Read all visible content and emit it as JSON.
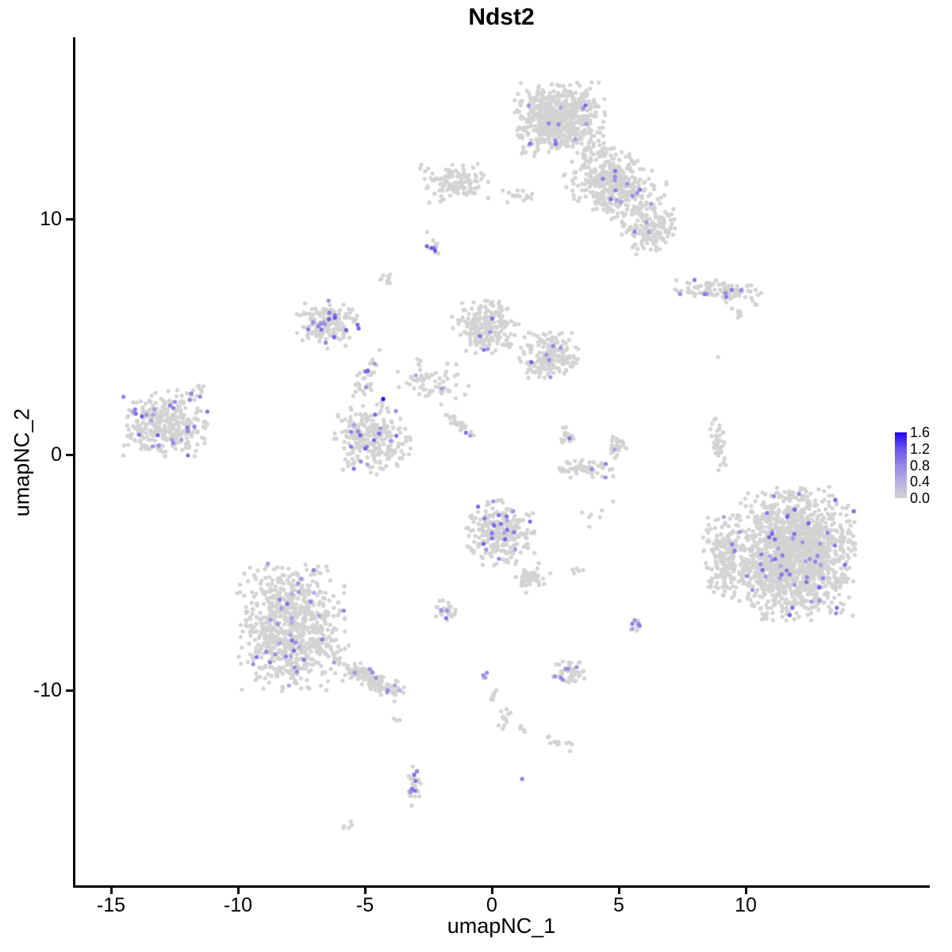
{
  "title": "Ndst2",
  "axes": {
    "x": {
      "label": "umapNC_1",
      "ticks": [
        -15,
        -10,
        -5,
        0,
        5,
        10
      ]
    },
    "y": {
      "label": "umapNC_2",
      "ticks": [
        10,
        0,
        -10
      ]
    }
  },
  "legend": {
    "labels": [
      "1.6",
      "1.2",
      "0.8",
      "0.4",
      "0.0"
    ],
    "values": [
      1.6,
      1.2,
      0.8,
      0.4,
      0.0
    ],
    "min": 0.0,
    "max": 1.6
  },
  "colors": {
    "background": "#ffffff",
    "axis": "#000000",
    "base_point": "#D3D3D3",
    "gradient_stops": [
      [
        0.0,
        "#D3D3D3"
      ],
      [
        0.4,
        "#B7AFE0"
      ],
      [
        0.8,
        "#9587E5"
      ],
      [
        1.2,
        "#6B52EC"
      ],
      [
        1.6,
        "#2406F2"
      ]
    ]
  },
  "chart_data": {
    "type": "scatter",
    "title": "Ndst2",
    "xlabel": "umapNC_1",
    "ylabel": "umapNC_2",
    "xlim": [
      -16.5,
      15.9
    ],
    "ylim": [
      -18.4,
      17.7
    ],
    "grid": false,
    "legend_position": "right",
    "colorbar": {
      "label_values": [
        0.0,
        0.4,
        0.8,
        1.2,
        1.6
      ],
      "min": 0.0,
      "max": 1.6
    },
    "point_radius_px": 2.6,
    "clusters": [
      {
        "name": "top-main",
        "x": 2.66,
        "y": 14.24,
        "sx": 0.82,
        "sy": 0.72,
        "n": 620,
        "angle": 0,
        "expr_frac": 0.013,
        "expr_lo": 0.5,
        "expr_hi": 1.1
      },
      {
        "name": "top-extension",
        "x": 4.84,
        "y": 11.48,
        "sx": 0.88,
        "sy": 0.64,
        "n": 430,
        "angle": -30,
        "expr_frac": 0.03,
        "expr_lo": 0.5,
        "expr_hi": 1.1
      },
      {
        "name": "top-right-lobe",
        "x": 6.25,
        "y": 9.6,
        "sx": 0.54,
        "sy": 0.51,
        "n": 150,
        "angle": 0,
        "expr_frac": 0.035,
        "expr_lo": 0.5,
        "expr_hi": 1.1
      },
      {
        "name": "top-left-small",
        "x": -1.47,
        "y": 11.55,
        "sx": 0.64,
        "sy": 0.4,
        "n": 110,
        "angle": 0,
        "expr_frac": 0.005,
        "expr_lo": 0.5,
        "expr_hi": 0.9
      },
      {
        "name": "top-connector",
        "x": 1.09,
        "y": 10.98,
        "sx": 0.43,
        "sy": 0.14,
        "n": 16,
        "angle": 0,
        "expr_frac": 0.0,
        "expr_lo": 0.5,
        "expr_hi": 0.9
      },
      {
        "name": "purple-dot-blob",
        "x": -2.34,
        "y": 8.79,
        "sx": 0.13,
        "sy": 0.15,
        "n": 13,
        "angle": 0,
        "expr_frac": 0.3,
        "expr_lo": 0.7,
        "expr_hi": 1.3
      },
      {
        "name": "small-gray-blob",
        "x": -4.13,
        "y": 7.44,
        "sx": 0.13,
        "sy": 0.12,
        "n": 10,
        "angle": 0,
        "expr_frac": 0.0,
        "expr_lo": 0.5,
        "expr_hi": 0.9
      },
      {
        "name": "fish-right",
        "x": 8.94,
        "y": 6.94,
        "sx": 0.81,
        "sy": 0.21,
        "n": 105,
        "angle": -8,
        "expr_frac": 0.05,
        "expr_lo": 0.6,
        "expr_hi": 1.0
      },
      {
        "name": "fish-tail",
        "x": 9.63,
        "y": 6.03,
        "sx": 0.18,
        "sy": 0.14,
        "n": 9,
        "angle": -40,
        "expr_frac": 0.0,
        "expr_lo": 0.5,
        "expr_hi": 0.9
      },
      {
        "name": "web-A-topleft",
        "x": -6.47,
        "y": 5.49,
        "sx": 0.57,
        "sy": 0.49,
        "n": 165,
        "angle": 0,
        "expr_frac": 0.095,
        "expr_lo": 0.5,
        "expr_hi": 1.2
      },
      {
        "name": "web-arm-down",
        "x": -4.91,
        "y": 3.33,
        "sx": 0.18,
        "sy": 0.58,
        "n": 40,
        "angle": -18,
        "expr_frac": 0.05,
        "expr_lo": 0.5,
        "expr_hi": 1.1
      },
      {
        "name": "web-C-lower",
        "x": -4.72,
        "y": 0.67,
        "sx": 0.71,
        "sy": 0.72,
        "n": 260,
        "angle": 0,
        "expr_frac": 0.075,
        "expr_lo": 0.5,
        "expr_hi": 1.1
      },
      {
        "name": "web-D-middle",
        "x": -0.25,
        "y": 5.42,
        "sx": 0.6,
        "sy": 0.55,
        "n": 215,
        "angle": 0,
        "expr_frac": 0.028,
        "expr_lo": 0.5,
        "expr_hi": 1.1
      },
      {
        "name": "web-E-right",
        "x": 2.38,
        "y": 4.21,
        "sx": 0.6,
        "sy": 0.51,
        "n": 195,
        "angle": 0,
        "expr_frac": 0.045,
        "expr_lo": 0.5,
        "expr_hi": 1.1
      },
      {
        "name": "web-connector",
        "x": -2.34,
        "y": 3.13,
        "sx": 0.68,
        "sy": 0.46,
        "n": 65,
        "angle": -15,
        "expr_frac": 0.03,
        "expr_lo": 0.5,
        "expr_hi": 1.0
      },
      {
        "name": "web-streak",
        "x": -1.31,
        "y": 1.25,
        "sx": 0.43,
        "sy": 0.08,
        "n": 26,
        "angle": -42,
        "expr_frac": 0.08,
        "expr_lo": 0.5,
        "expr_hi": 1.0
      },
      {
        "name": "far-left",
        "x": -12.94,
        "y": 1.31,
        "sx": 0.82,
        "sy": 0.66,
        "n": 320,
        "angle": 0,
        "expr_frac": 0.07,
        "expr_lo": 0.5,
        "expr_hi": 1.1
      },
      {
        "name": "far-left-tail",
        "x": -11.56,
        "y": 2.66,
        "sx": 0.2,
        "sy": 0.21,
        "n": 14,
        "angle": -35,
        "expr_frac": 0.08,
        "expr_lo": 0.6,
        "expr_hi": 1.0
      },
      {
        "name": "crescent-left",
        "x": 3.0,
        "y": 0.84,
        "sx": 0.17,
        "sy": 0.21,
        "n": 22,
        "angle": 0,
        "expr_frac": 0.06,
        "expr_lo": 0.5,
        "expr_hi": 1.0
      },
      {
        "name": "crescent-bottom",
        "x": 3.78,
        "y": -0.57,
        "sx": 0.54,
        "sy": 0.2,
        "n": 60,
        "angle": 0,
        "expr_frac": 0.06,
        "expr_lo": 0.5,
        "expr_hi": 1.0
      },
      {
        "name": "crescent-right",
        "x": 4.91,
        "y": 0.37,
        "sx": 0.18,
        "sy": 0.25,
        "n": 26,
        "angle": 0,
        "expr_frac": 0.03,
        "expr_lo": 0.5,
        "expr_hi": 1.0
      },
      {
        "name": "sliver-right",
        "x": 8.94,
        "y": 0.34,
        "sx": 0.13,
        "sy": 0.57,
        "n": 42,
        "angle": 8,
        "expr_frac": 0.03,
        "expr_lo": 0.6,
        "expr_hi": 1.0
      },
      {
        "name": "big-right-main",
        "x": 11.88,
        "y": -4.21,
        "sx": 1.11,
        "sy": 1.3,
        "n": 1550,
        "angle": 0,
        "expr_frac": 0.03,
        "expr_lo": 0.5,
        "expr_hi": 1.1
      },
      {
        "name": "big-right-leftedge",
        "x": 9.16,
        "y": -4.28,
        "sx": 0.38,
        "sy": 0.92,
        "n": 190,
        "angle": 0,
        "expr_frac": 0.02,
        "expr_lo": 0.5,
        "expr_hi": 1.0
      },
      {
        "name": "center-cluster",
        "x": 0.31,
        "y": -3.33,
        "sx": 0.64,
        "sy": 0.64,
        "n": 250,
        "angle": 0,
        "expr_frac": 0.055,
        "expr_lo": 0.5,
        "expr_hi": 1.1
      },
      {
        "name": "center-arm",
        "x": 1.56,
        "y": -5.29,
        "sx": 0.26,
        "sy": 0.38,
        "n": 45,
        "angle": -50,
        "expr_frac": 0.04,
        "expr_lo": 0.5,
        "expr_hi": 1.0
      },
      {
        "name": "purple-pair",
        "x": 3.38,
        "y": -4.88,
        "sx": 0.13,
        "sy": 0.08,
        "n": 6,
        "angle": 0,
        "expr_frac": 0.4,
        "expr_lo": 0.6,
        "expr_hi": 1.0
      },
      {
        "name": "small-blob-left",
        "x": -1.81,
        "y": -6.63,
        "sx": 0.23,
        "sy": 0.21,
        "n": 30,
        "angle": 0,
        "expr_frac": 0.06,
        "expr_lo": 0.5,
        "expr_hi": 1.0
      },
      {
        "name": "small-blob-right",
        "x": 5.72,
        "y": -7.24,
        "sx": 0.16,
        "sy": 0.17,
        "n": 14,
        "angle": 0,
        "expr_frac": 0.15,
        "expr_lo": 0.5,
        "expr_hi": 1.0
      },
      {
        "name": "bottom-left-main",
        "x": -7.88,
        "y": -7.37,
        "sx": 1.02,
        "sy": 1.25,
        "n": 800,
        "angle": 0,
        "expr_frac": 0.055,
        "expr_lo": 0.4,
        "expr_hi": 1.0
      },
      {
        "name": "bottom-left-tail",
        "x": -4.69,
        "y": -9.53,
        "sx": 0.68,
        "sy": 0.21,
        "n": 140,
        "angle": -30,
        "expr_frac": 0.08,
        "expr_lo": 0.4,
        "expr_hi": 1.0
      },
      {
        "name": "below-tail-pair",
        "x": -3.75,
        "y": -11.31,
        "sx": 0.11,
        "sy": 0.06,
        "n": 3,
        "angle": 0,
        "expr_frac": 0.0,
        "expr_lo": 0.5,
        "expr_hi": 0.9
      },
      {
        "name": "bottom-small",
        "x": 3.0,
        "y": -9.26,
        "sx": 0.37,
        "sy": 0.24,
        "n": 50,
        "angle": 0,
        "expr_frac": 0.09,
        "expr_lo": 0.5,
        "expr_hi": 1.0
      },
      {
        "name": "trail-1",
        "x": -0.25,
        "y": -9.36,
        "sx": 0.07,
        "sy": 0.11,
        "n": 4,
        "angle": 0,
        "expr_frac": 0.3,
        "expr_lo": 0.6,
        "expr_hi": 0.9
      },
      {
        "name": "trail-2",
        "x": 0.09,
        "y": -10.2,
        "sx": 0.09,
        "sy": 0.2,
        "n": 8,
        "angle": 0,
        "expr_frac": 0.13,
        "expr_lo": 0.5,
        "expr_hi": 0.9
      },
      {
        "name": "trail-3",
        "x": 0.5,
        "y": -11.25,
        "sx": 0.13,
        "sy": 0.21,
        "n": 12,
        "angle": 0,
        "expr_frac": 0.0,
        "expr_lo": 0.5,
        "expr_hi": 0.9
      },
      {
        "name": "trail-4",
        "x": 1.28,
        "y": -11.62,
        "sx": 0.13,
        "sy": 0.08,
        "n": 5,
        "angle": 0,
        "expr_frac": 0.0,
        "expr_lo": 0.5,
        "expr_hi": 0.9
      },
      {
        "name": "trail-5",
        "x": 2.63,
        "y": -12.26,
        "sx": 0.28,
        "sy": 0.11,
        "n": 13,
        "angle": -20,
        "expr_frac": 0.0,
        "expr_lo": 0.5,
        "expr_hi": 0.9
      },
      {
        "name": "bottom-vertical",
        "x": -3.03,
        "y": -14.04,
        "sx": 0.14,
        "sy": 0.4,
        "n": 28,
        "angle": 0,
        "expr_frac": 0.18,
        "expr_lo": 0.5,
        "expr_hi": 1.0
      },
      {
        "name": "tiny-bottom",
        "x": -5.72,
        "y": -15.72,
        "sx": 0.13,
        "sy": 0.08,
        "n": 5,
        "angle": 0,
        "expr_frac": 0.0,
        "expr_lo": 0.5,
        "expr_hi": 0.9
      },
      {
        "name": "strays-mid",
        "x": 4.06,
        "y": -2.59,
        "sx": 0.4,
        "sy": 0.25,
        "n": 6,
        "angle": 0,
        "expr_frac": 0.0,
        "expr_lo": 0.5,
        "expr_hi": 0.9
      }
    ],
    "extra_points": [
      {
        "x": -4.28,
        "y": 2.36,
        "v": 1.6
      },
      {
        "x": 1.19,
        "y": -13.77,
        "v": 0.85
      },
      {
        "x": 8.91,
        "y": 4.14,
        "v": 0
      },
      {
        "x": 4.78,
        "y": -1.99,
        "v": 0
      },
      {
        "x": -2.55,
        "y": 9.45,
        "v": 0
      }
    ]
  }
}
